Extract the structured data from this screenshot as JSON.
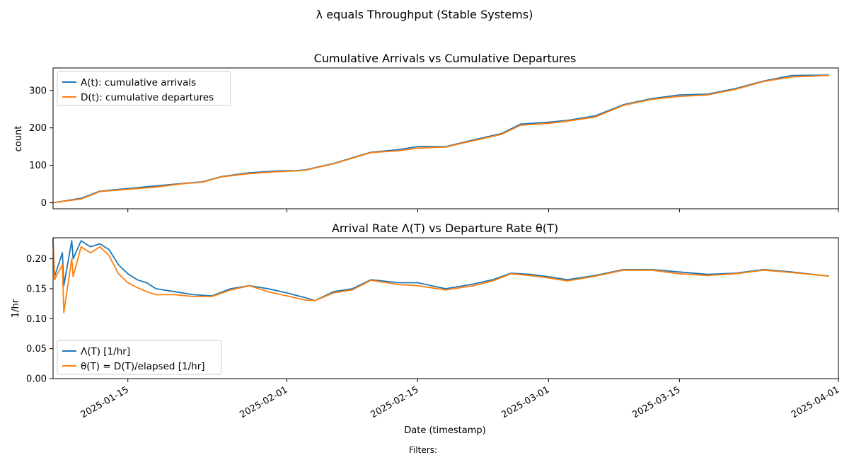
{
  "figure": {
    "suptitle": "λ equals Throughput (Stable Systems)",
    "footer": "Filters:",
    "xlabel": "Date (timestamp)",
    "colors": {
      "series_a": "#1f77b4",
      "series_b": "#ff7f0e",
      "axis": "#000000",
      "background": "#ffffff"
    }
  },
  "chart_data": [
    {
      "type": "line",
      "title": "Cumulative Arrivals vs Cumulative Departures",
      "xlabel": "",
      "ylabel": "count",
      "xlim": [
        "2025-01-07",
        "2025-04-01"
      ],
      "ylim": [
        -16,
        360
      ],
      "yticks": [
        0,
        100,
        200,
        300
      ],
      "xticks": [
        "2025-01-15",
        "2025-02-01",
        "2025-02-15",
        "2025-03-01",
        "2025-03-15",
        "2025-04-01"
      ],
      "legend_location": "upper-left",
      "series": [
        {
          "name": "A(t): cumulative arrivals",
          "color": "#1f77b4",
          "x": [
            "2025-01-07",
            "2025-01-10",
            "2025-01-12",
            "2025-01-15",
            "2025-01-18",
            "2025-01-21",
            "2025-01-23",
            "2025-01-25",
            "2025-01-28",
            "2025-01-31",
            "2025-02-02",
            "2025-02-03",
            "2025-02-06",
            "2025-02-08",
            "2025-02-10",
            "2025-02-13",
            "2025-02-15",
            "2025-02-18",
            "2025-02-21",
            "2025-02-24",
            "2025-02-26",
            "2025-03-01",
            "2025-03-03",
            "2025-03-06",
            "2025-03-09",
            "2025-03-12",
            "2025-03-15",
            "2025-03-18",
            "2025-03-21",
            "2025-03-24",
            "2025-03-27",
            "2025-03-31"
          ],
          "y": [
            0,
            12,
            31,
            38,
            45,
            52,
            56,
            70,
            80,
            85,
            86,
            88,
            105,
            120,
            135,
            142,
            150,
            150,
            168,
            185,
            210,
            215,
            220,
            232,
            262,
            278,
            288,
            290,
            305,
            325,
            340,
            341
          ]
        },
        {
          "name": "D(t): cumulative departures",
          "color": "#ff7f0e",
          "x": [
            "2025-01-07",
            "2025-01-10",
            "2025-01-12",
            "2025-01-15",
            "2025-01-18",
            "2025-01-21",
            "2025-01-23",
            "2025-01-25",
            "2025-01-28",
            "2025-01-31",
            "2025-02-02",
            "2025-02-03",
            "2025-02-06",
            "2025-02-08",
            "2025-02-10",
            "2025-02-13",
            "2025-02-15",
            "2025-02-18",
            "2025-02-21",
            "2025-02-24",
            "2025-02-26",
            "2025-03-01",
            "2025-03-03",
            "2025-03-06",
            "2025-03-09",
            "2025-03-12",
            "2025-03-15",
            "2025-03-18",
            "2025-03-21",
            "2025-03-24",
            "2025-03-27",
            "2025-03-31"
          ],
          "y": [
            0,
            10,
            30,
            36,
            42,
            51,
            55,
            69,
            78,
            83,
            85,
            87,
            104,
            119,
            134,
            139,
            146,
            149,
            166,
            183,
            207,
            212,
            218,
            229,
            260,
            276,
            284,
            288,
            303,
            324,
            336,
            340
          ]
        }
      ]
    },
    {
      "type": "line",
      "title": "Arrival Rate Λ(T) vs Departure Rate θ(T)",
      "xlabel": "Date (timestamp)",
      "ylabel": "1/hr",
      "xlim": [
        "2025-01-07",
        "2025-04-01"
      ],
      "ylim": [
        0,
        0.235
      ],
      "yticks": [
        0.0,
        0.05,
        0.1,
        0.15,
        0.2
      ],
      "xticks": [
        "2025-01-15",
        "2025-02-01",
        "2025-02-15",
        "2025-03-01",
        "2025-03-15",
        "2025-04-01"
      ],
      "legend_location": "lower-left",
      "series": [
        {
          "name": "Λ(T) [1/hr]",
          "color": "#1f77b4",
          "x": [
            "2025-01-07",
            "2025-01-07",
            "2025-01-08",
            "2025-01-08",
            "2025-01-09",
            "2025-01-09",
            "2025-01-10",
            "2025-01-11",
            "2025-01-12",
            "2025-01-13",
            "2025-01-14",
            "2025-01-15",
            "2025-01-16",
            "2025-01-17",
            "2025-01-18",
            "2025-01-20",
            "2025-01-22",
            "2025-01-24",
            "2025-01-26",
            "2025-01-28",
            "2025-01-30",
            "2025-02-01",
            "2025-02-03",
            "2025-02-04",
            "2025-02-06",
            "2025-02-08",
            "2025-02-10",
            "2025-02-13",
            "2025-02-15",
            "2025-02-18",
            "2025-02-21",
            "2025-02-23",
            "2025-02-25",
            "2025-02-27",
            "2025-03-01",
            "2025-03-03",
            "2025-03-06",
            "2025-03-09",
            "2025-03-12",
            "2025-03-15",
            "2025-03-18",
            "2025-03-21",
            "2025-03-24",
            "2025-03-27",
            "2025-03-31"
          ],
          "y": [
            0.23,
            0.17,
            0.21,
            0.155,
            0.23,
            0.2,
            0.23,
            0.22,
            0.225,
            0.215,
            0.19,
            0.175,
            0.165,
            0.16,
            0.15,
            0.145,
            0.14,
            0.138,
            0.15,
            0.155,
            0.15,
            0.143,
            0.135,
            0.13,
            0.145,
            0.15,
            0.165,
            0.16,
            0.16,
            0.15,
            0.158,
            0.165,
            0.176,
            0.174,
            0.17,
            0.165,
            0.172,
            0.182,
            0.182,
            0.178,
            0.174,
            0.176,
            0.182,
            0.178,
            0.171
          ]
        },
        {
          "name": "θ(T) = D(T)/elapsed [1/hr]",
          "color": "#ff7f0e",
          "x": [
            "2025-01-07",
            "2025-01-07",
            "2025-01-08",
            "2025-01-08",
            "2025-01-09",
            "2025-01-09",
            "2025-01-10",
            "2025-01-11",
            "2025-01-12",
            "2025-01-13",
            "2025-01-14",
            "2025-01-15",
            "2025-01-16",
            "2025-01-17",
            "2025-01-18",
            "2025-01-20",
            "2025-01-22",
            "2025-01-24",
            "2025-01-26",
            "2025-01-28",
            "2025-01-30",
            "2025-02-01",
            "2025-02-03",
            "2025-02-04",
            "2025-02-06",
            "2025-02-08",
            "2025-02-10",
            "2025-02-13",
            "2025-02-15",
            "2025-02-18",
            "2025-02-21",
            "2025-02-23",
            "2025-02-25",
            "2025-02-27",
            "2025-03-01",
            "2025-03-03",
            "2025-03-06",
            "2025-03-09",
            "2025-03-12",
            "2025-03-15",
            "2025-03-18",
            "2025-03-21",
            "2025-03-24",
            "2025-03-27",
            "2025-03-31"
          ],
          "y": [
            0.235,
            0.165,
            0.19,
            0.11,
            0.2,
            0.17,
            0.22,
            0.21,
            0.22,
            0.205,
            0.175,
            0.16,
            0.152,
            0.145,
            0.14,
            0.14,
            0.137,
            0.137,
            0.148,
            0.155,
            0.145,
            0.138,
            0.131,
            0.13,
            0.143,
            0.148,
            0.164,
            0.157,
            0.155,
            0.148,
            0.155,
            0.163,
            0.175,
            0.172,
            0.168,
            0.163,
            0.171,
            0.181,
            0.181,
            0.175,
            0.172,
            0.175,
            0.181,
            0.177,
            0.171
          ]
        }
      ]
    }
  ]
}
